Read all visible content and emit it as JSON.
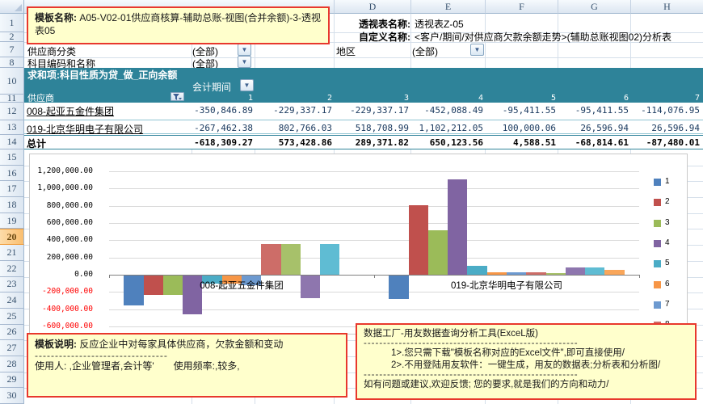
{
  "columns": {
    "letters": [
      "D",
      "E",
      "F",
      "G",
      "H"
    ]
  },
  "rows": {
    "numbers": [
      "1",
      "2",
      "7",
      "8",
      "10",
      "11",
      "12",
      "13",
      "14",
      "15",
      "16",
      "17",
      "18",
      "19",
      "20",
      "21",
      "22",
      "23",
      "24",
      "25",
      "26",
      "27",
      "28",
      "29",
      "30"
    ],
    "selected": "20"
  },
  "title_box": {
    "label": "模板名称:",
    "text": "A05-V02-01供应商核算-辅助总账-视图(合并余额)-3-透视表05"
  },
  "pivot_info": {
    "name_label": "透视表名称:",
    "name_value": "透视表Z-05",
    "custom_label": "自定义名称:",
    "custom_value": "<客户/期间/对供应商欠款余额走势>(辅助总账视图02)分析表"
  },
  "filters": {
    "supplier_category": {
      "label": "供应商分类",
      "value": "(全部)"
    },
    "account": {
      "label": "科目编码和名称",
      "value": "(全部)"
    },
    "region": {
      "label": "地区",
      "value": "(全部)"
    }
  },
  "pivot_table": {
    "measure": "求和项:科目性质为贷_做_正向余额",
    "column_field": "会计期间",
    "row_field": "供应商",
    "period_headers": [
      "1",
      "2",
      "3",
      "4",
      "5",
      "6",
      "7"
    ],
    "data_rows": [
      {
        "name": "008-起亚五金件集团",
        "values": [
          "-350,846.89",
          "-229,337.17",
          "-229,337.17",
          "-452,088.49",
          "-95,411.55",
          "-95,411.55",
          "-114,076.95"
        ]
      },
      {
        "name": "019-北京华明电子有限公司",
        "values": [
          "-267,462.38",
          "802,766.03",
          "518,708.99",
          "1,102,212.05",
          "100,000.06",
          "26,596.94",
          "26,596.94"
        ]
      }
    ],
    "total_row": {
      "label": "总计",
      "values": [
        "-618,309.27",
        "573,428.86",
        "289,371.82",
        "650,123.56",
        "4,588.51",
        "-68,814.61",
        "-87,480.01"
      ]
    }
  },
  "chart_data": {
    "type": "bar",
    "title": "",
    "xlabel": "",
    "ylabel": "",
    "categories": [
      "008-起亚五金件集团",
      "019-北京华明电子有限公司"
    ],
    "series": [
      {
        "name": "1",
        "color": "#4F81BD",
        "values": [
          -350846.89,
          -267462.38
        ]
      },
      {
        "name": "2",
        "color": "#C0504D",
        "values": [
          -229337.17,
          802766.03
        ]
      },
      {
        "name": "3",
        "color": "#9BBB59",
        "values": [
          -229337.17,
          518708.99
        ]
      },
      {
        "name": "4",
        "color": "#8064A2",
        "values": [
          -452088.49,
          1102212.05
        ]
      },
      {
        "name": "5",
        "color": "#4BACC6",
        "values": [
          -95411.55,
          100000.06
        ]
      },
      {
        "name": "6",
        "color": "#F79646",
        "values": [
          -95411.55,
          26596.94
        ]
      },
      {
        "name": "7",
        "color": "#6D9AD0",
        "values": [
          -114076.95,
          26596.94
        ]
      },
      {
        "name": "8",
        "color": "#CD6D68",
        "values": [
          360000,
          26000
        ],
        "estimated": true
      },
      {
        "name": "9",
        "color": "#A7C16A",
        "values": [
          360000,
          15000
        ],
        "estimated": true
      },
      {
        "name": "10",
        "color": "#8E76AE",
        "values": [
          -260000,
          85000
        ],
        "estimated": true
      },
      {
        "name": "11",
        "color": "#5FBCD3",
        "values": [
          360000,
          80000
        ],
        "estimated": true
      },
      {
        "name": "12",
        "color": "#F9A65A",
        "values": [
          0,
          55000
        ],
        "estimated": true
      }
    ],
    "ylim": [
      -600000,
      1200000
    ],
    "ytick_step": 200000,
    "yticks": [
      "1,200,000.00",
      "1,000,000.00",
      "800,000.00",
      "600,000.00",
      "400,000.00",
      "200,000.00",
      "0.00",
      "-200,000.00",
      "-400,000.00",
      "-600,000.00"
    ],
    "negative_tick_color": "#FF0000",
    "grid": true,
    "legend_position": "right",
    "legend_labels": [
      "1",
      "2",
      "3",
      "4",
      "5",
      "6",
      "7",
      "8"
    ]
  },
  "notes": {
    "left": {
      "label": "模板说明:",
      "text": " 反应企业中对每家具体供应商，欠款金额和变动",
      "divider": "---------------------------------",
      "users_line": "使用人: ,企业管理者,会计等'　　使用频率:,较多,"
    },
    "right": {
      "title": "数据工厂-用友数据查询分析工具(ExceL版)",
      "divider1": "-------------------------------------------------------",
      "item1": "1>.您只需下载\"模板名称对应的Excel文件\",即可直接使用/",
      "item2": "2>.不用登陆用友软件：一键生成，用友的数据表;分析表和分析图/",
      "divider2": "-------------------------------------------------------",
      "footer": "如有问题或建议,欢迎反馈; 您的要求,就是我们的方向和动力/"
    }
  }
}
